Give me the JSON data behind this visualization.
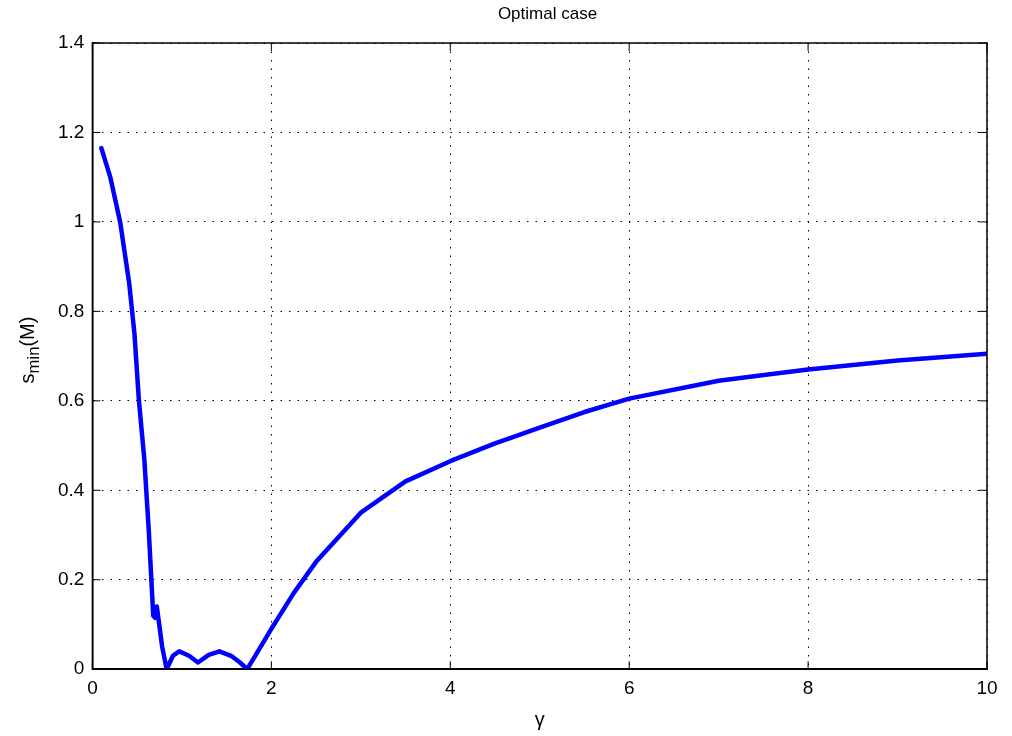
{
  "chart_data": {
    "type": "line",
    "title": "Optimal case",
    "xlabel": "γ",
    "ylabel": "s$_{min}$(M)",
    "x": [
      0.1,
      0.2,
      0.31,
      0.41,
      0.47,
      0.52,
      0.58,
      0.63,
      0.68,
      0.7,
      0.72,
      0.74,
      0.78,
      0.83,
      0.9,
      0.97,
      1.08,
      1.18,
      1.3,
      1.42,
      1.55,
      1.65,
      1.73,
      1.85,
      2,
      2.25,
      2.5,
      3,
      3.5,
      4,
      4.5,
      5,
      5.5,
      6,
      7,
      8,
      9,
      10
    ],
    "series": [
      {
        "color": "#0000ff",
        "values": [
          1.165,
          1.1,
          1.0,
          0.865,
          0.75,
          0.6,
          0.47,
          0.31,
          0.12,
          0.115,
          0.14,
          0.11,
          0.05,
          0.0,
          0.03,
          0.04,
          0.03,
          0.015,
          0.032,
          0.04,
          0.03,
          0.015,
          0.0,
          0.04,
          0.09,
          0.17,
          0.24,
          0.35,
          0.42,
          0.465,
          0.505,
          0.54,
          0.575,
          0.605,
          0.645,
          0.67,
          0.69,
          0.705
        ]
      }
    ],
    "xlim": [
      0,
      10
    ],
    "xticks": [
      0,
      2,
      4,
      6,
      8,
      10
    ],
    "ylim": [
      0,
      1.4
    ],
    "yticks": [
      0,
      0.2,
      0.4,
      0.6,
      0.8,
      1,
      1.2,
      1.4
    ],
    "grid": true,
    "legend": false,
    "marker": "none",
    "line_style": "solid"
  }
}
